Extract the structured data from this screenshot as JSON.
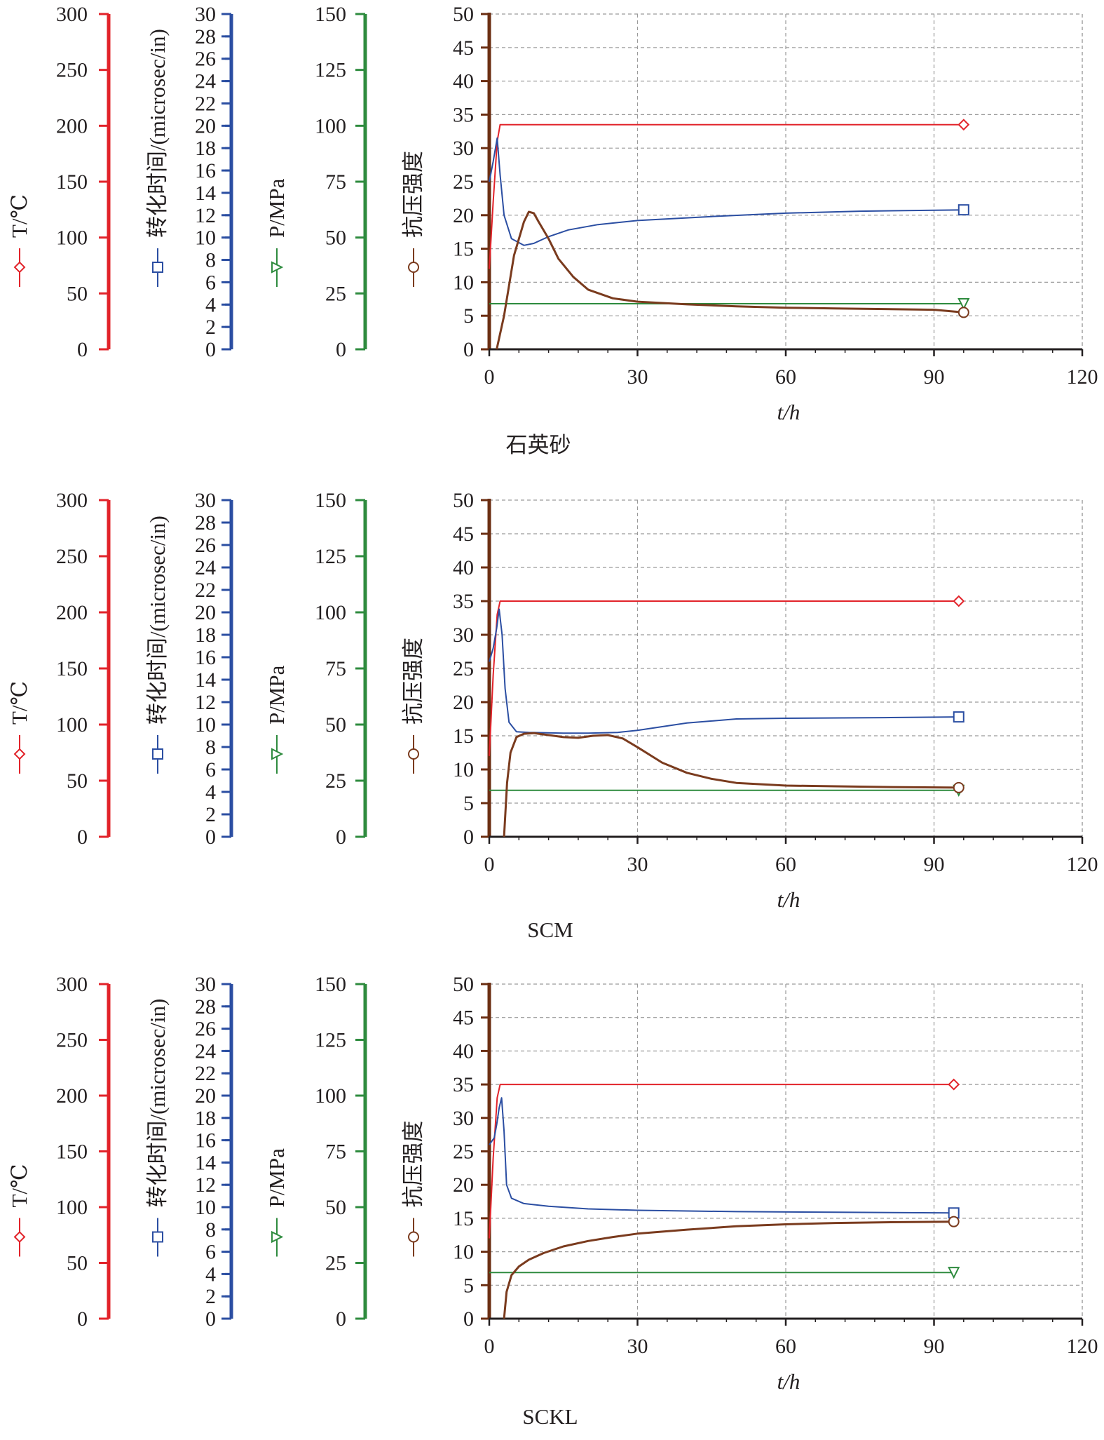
{
  "colors": {
    "temperature": "#e2232a",
    "transit": "#2b4ea2",
    "pressure": "#2e8b3e",
    "strength": "#7a3b1e",
    "frame": "#231f20",
    "grid": "#9a9a9a",
    "strength_axis": "#6b2e12"
  },
  "axis_labels": {
    "temperature": "T/℃",
    "transit": "转化时间/(microsec/in)",
    "pressure": "P/MPa",
    "strength": "抗压强度",
    "x": "t/h"
  },
  "axis_ticks": {
    "temperature": [
      "0",
      "50",
      "100",
      "150",
      "200",
      "250",
      "300"
    ],
    "transit": [
      "0",
      "2",
      "4",
      "6",
      "8",
      "10",
      "12",
      "14",
      "16",
      "18",
      "20",
      "22",
      "24",
      "26",
      "28",
      "30"
    ],
    "pressure": [
      "0",
      "25",
      "50",
      "75",
      "100",
      "125",
      "150"
    ],
    "strength": [
      "0",
      "5",
      "10",
      "15",
      "20",
      "25",
      "30",
      "35",
      "40",
      "45",
      "50"
    ],
    "x": [
      "0",
      "30",
      "60",
      "90",
      "120"
    ]
  },
  "chart_data": [
    {
      "type": "line",
      "caption": "石英砂",
      "xlabel": "t/h",
      "xlim": [
        0,
        120
      ],
      "ylim": [
        0,
        50
      ],
      "grid": true,
      "series": [
        {
          "name": "T/℃",
          "marker": "diamond",
          "x": [
            0,
            0.8,
            1.6,
            2.2,
            96
          ],
          "y": [
            12,
            22,
            31,
            33.5,
            33.5
          ]
        },
        {
          "name": "转化时间/(microsec/in)",
          "marker": "square",
          "x": [
            0,
            0.8,
            1.6,
            2.2,
            3,
            4.5,
            7,
            9,
            12,
            16,
            22,
            30,
            45,
            60,
            75,
            96
          ],
          "y": [
            25,
            28,
            31.5,
            26,
            20,
            16.5,
            15.5,
            15.8,
            16.8,
            17.8,
            18.6,
            19.2,
            19.8,
            20.3,
            20.6,
            20.8
          ]
        },
        {
          "name": "P/MPa",
          "marker": "triangle-down",
          "x": [
            0,
            96
          ],
          "y": [
            6.8,
            6.8
          ]
        },
        {
          "name": "抗压强度",
          "marker": "circle",
          "x": [
            1.5,
            3,
            5,
            7,
            8,
            9,
            10,
            12,
            14,
            17,
            20,
            25,
            30,
            40,
            50,
            60,
            70,
            80,
            90,
            96
          ],
          "y": [
            0,
            5,
            14,
            19,
            20.5,
            20.3,
            19,
            16.5,
            13.5,
            10.8,
            8.9,
            7.6,
            7.1,
            6.7,
            6.4,
            6.2,
            6.1,
            6.0,
            5.9,
            5.5
          ]
        }
      ]
    },
    {
      "type": "line",
      "caption": "SCM",
      "xlabel": "t/h",
      "xlim": [
        0,
        120
      ],
      "ylim": [
        0,
        50
      ],
      "grid": true,
      "series": [
        {
          "name": "T/℃",
          "marker": "diamond",
          "x": [
            0,
            0.8,
            1.6,
            2.2,
            95
          ],
          "y": [
            12,
            24,
            33,
            35,
            35
          ]
        },
        {
          "name": "转化时间/(microsec/in)",
          "marker": "square",
          "x": [
            0,
            0.8,
            1.5,
            2,
            2.6,
            3.2,
            4,
            5.5,
            8,
            15,
            20,
            26,
            30,
            40,
            50,
            60,
            80,
            95
          ],
          "y": [
            26,
            28,
            31,
            33.8,
            30,
            22,
            17,
            15.6,
            15.5,
            15.4,
            15.4,
            15.5,
            15.8,
            16.9,
            17.5,
            17.6,
            17.7,
            17.8
          ]
        },
        {
          "name": "P/MPa",
          "marker": "triangle-down",
          "x": [
            0,
            95
          ],
          "y": [
            6.9,
            6.9
          ]
        },
        {
          "name": "抗压强度",
          "marker": "circle",
          "x": [
            3,
            3.6,
            4.3,
            5.5,
            7,
            9,
            12,
            15,
            18,
            21,
            24,
            27,
            30,
            35,
            40,
            45,
            50,
            60,
            70,
            80,
            95
          ],
          "y": [
            0,
            8,
            12.5,
            14.8,
            15.3,
            15.4,
            15.1,
            14.8,
            14.7,
            15,
            15.1,
            14.6,
            13.3,
            11,
            9.5,
            8.6,
            8,
            7.6,
            7.5,
            7.4,
            7.3
          ]
        }
      ]
    },
    {
      "type": "line",
      "caption": "SCKL",
      "xlabel": "t/h",
      "xlim": [
        0,
        120
      ],
      "ylim": [
        0,
        50
      ],
      "grid": true,
      "series": [
        {
          "name": "T/℃",
          "marker": "diamond",
          "x": [
            0,
            0.8,
            1.6,
            2.2,
            94
          ],
          "y": [
            12,
            24,
            33,
            35,
            35
          ]
        },
        {
          "name": "转化时间/(microsec/in)",
          "marker": "square",
          "x": [
            0,
            0.5,
            1,
            1.5,
            2,
            2.5,
            3,
            3.5,
            4.5,
            7,
            12,
            20,
            30,
            50,
            70,
            94
          ],
          "y": [
            26,
            26.5,
            27,
            29,
            31.5,
            33,
            28,
            20,
            18,
            17.2,
            16.8,
            16.4,
            16.2,
            16,
            15.9,
            15.8
          ]
        },
        {
          "name": "P/MPa",
          "marker": "triangle-down",
          "x": [
            0,
            94
          ],
          "y": [
            6.9,
            6.9
          ]
        },
        {
          "name": "抗压强度",
          "marker": "circle",
          "x": [
            3,
            3.5,
            4.5,
            6,
            8,
            11,
            15,
            20,
            25,
            30,
            40,
            50,
            60,
            70,
            80,
            94
          ],
          "y": [
            0,
            4,
            6.5,
            7.8,
            8.8,
            9.8,
            10.8,
            11.6,
            12.2,
            12.7,
            13.3,
            13.8,
            14.1,
            14.3,
            14.4,
            14.5
          ]
        }
      ]
    }
  ]
}
